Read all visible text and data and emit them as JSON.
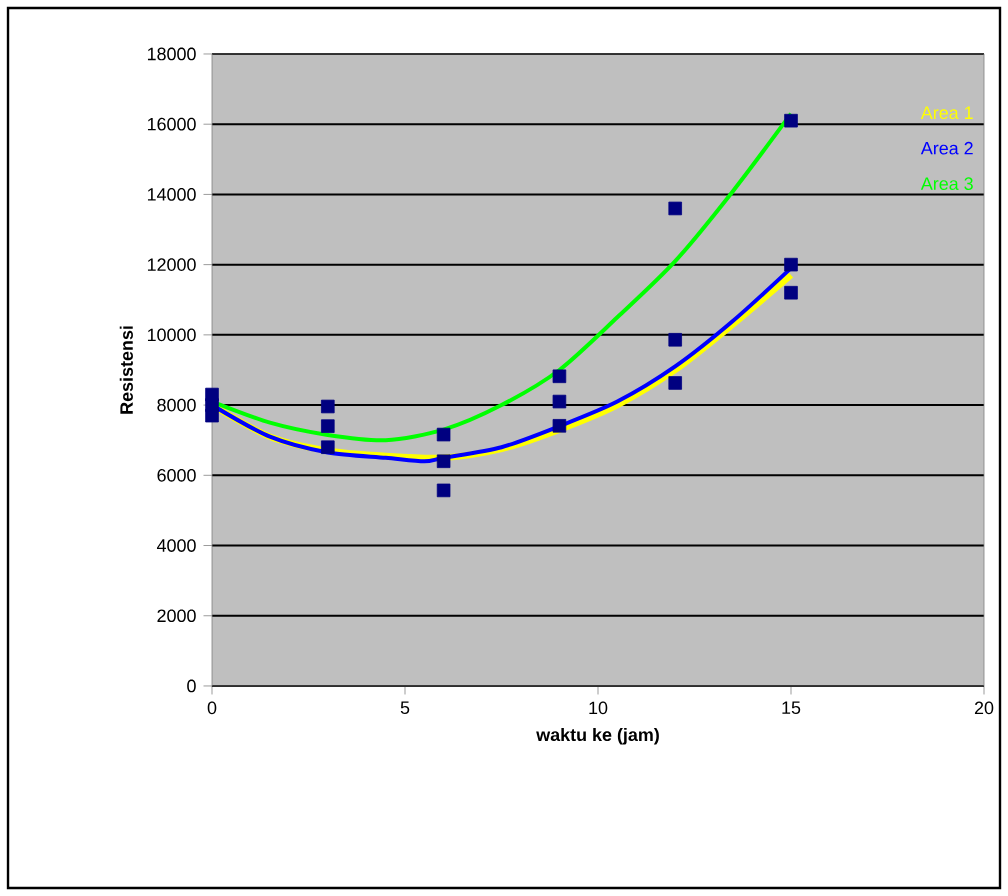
{
  "chart_data": {
    "type": "line",
    "xlabel": "waktu ke (jam)",
    "ylabel": "Resistensi",
    "xlim": [
      0,
      20
    ],
    "xticks": [
      0,
      5,
      10,
      15,
      20
    ],
    "ylim": [
      0,
      18000
    ],
    "yticks": [
      0,
      2000,
      4000,
      6000,
      8000,
      10000,
      12000,
      14000,
      16000,
      18000
    ],
    "grid": "y",
    "legend": "top right",
    "series": [
      {
        "type": "scatter",
        "marker": "square",
        "color": "#000080",
        "x": [
          0,
          0,
          0,
          3,
          3,
          3,
          6,
          6,
          6,
          9,
          9,
          9,
          12,
          12,
          12,
          15,
          15,
          15
        ],
        "values": [
          8300,
          8000,
          7700,
          7960,
          7400,
          6800,
          7160,
          6400,
          5570,
          8820,
          8100,
          7410,
          13600,
          9860,
          8630,
          16100,
          12000,
          11200
        ]
      },
      {
        "name": "Area 1",
        "color": "#ffff00",
        "marker": "none",
        "x": [
          0,
          1.5,
          3,
          4.5,
          6,
          7.5,
          9,
          10.5,
          12,
          13.5,
          15
        ],
        "values": [
          8000,
          7100,
          6700,
          6550,
          6500,
          6750,
          7300,
          8000,
          9000,
          10300,
          11700
        ]
      },
      {
        "name": "Area 2",
        "color": "#0000ff",
        "marker": "none",
        "x": [
          0,
          1.5,
          3,
          4.5,
          5.5,
          6,
          7.5,
          9,
          10.5,
          12,
          13.5,
          15
        ],
        "values": [
          8000,
          7100,
          6650,
          6500,
          6400,
          6500,
          6800,
          7400,
          8100,
          9100,
          10400,
          11900
        ]
      },
      {
        "name": "Area 3",
        "color": "#00ff00",
        "marker": "none",
        "x": [
          0,
          1.5,
          3,
          4.5,
          6,
          7.5,
          9,
          10.5,
          12,
          13.5,
          15
        ],
        "values": [
          8100,
          7500,
          7150,
          7000,
          7300,
          8000,
          9000,
          10500,
          12100,
          14100,
          16300
        ]
      }
    ]
  }
}
